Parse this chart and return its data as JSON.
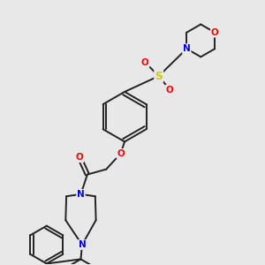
{
  "background_color": "#e8e8e8",
  "figsize": [
    3.0,
    3.0
  ],
  "dpi": 100,
  "bond_color": "#222222",
  "bond_width": 1.4,
  "atom_colors": {
    "O": "#ff0000",
    "N": "#0000ee",
    "S": "#cccc00",
    "C": "#222222"
  },
  "font_size_atom": 7.5
}
